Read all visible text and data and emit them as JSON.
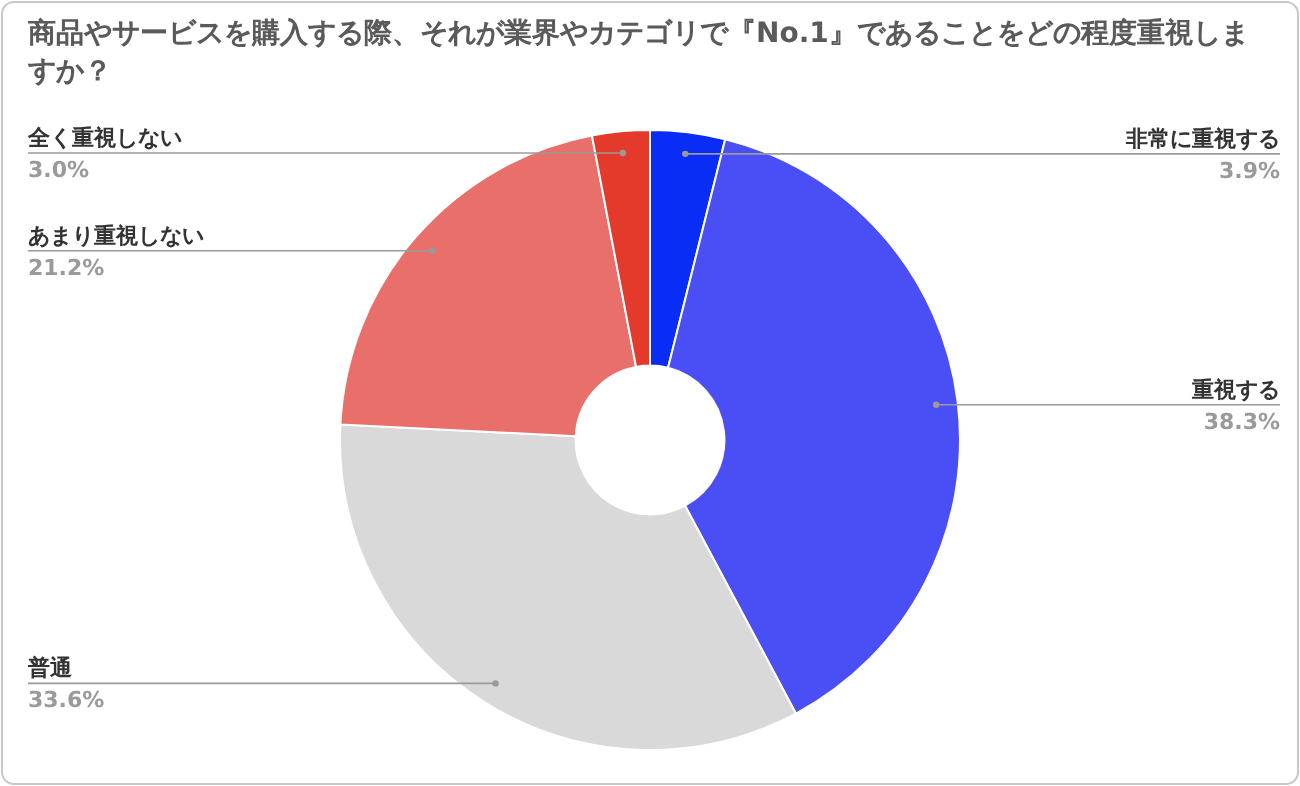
{
  "chart_data": {
    "type": "donut",
    "title": "商品やサービスを購入する際、それが業界やカテゴリで『No.1』であることをどの程度重視しますか？",
    "categories": [
      "非常に重視する",
      "重視する",
      "普通",
      "あまり重視しない",
      "全く重視しない"
    ],
    "values": [
      3.9,
      38.3,
      33.6,
      21.2,
      3.0
    ],
    "colors": [
      "#0a2df5",
      "#4a4ff5",
      "#d9d9d9",
      "#e9706a",
      "#e33a2b"
    ],
    "value_labels": [
      "3.9%",
      "38.3%",
      "33.6%",
      "21.2%",
      "3.0%"
    ]
  }
}
